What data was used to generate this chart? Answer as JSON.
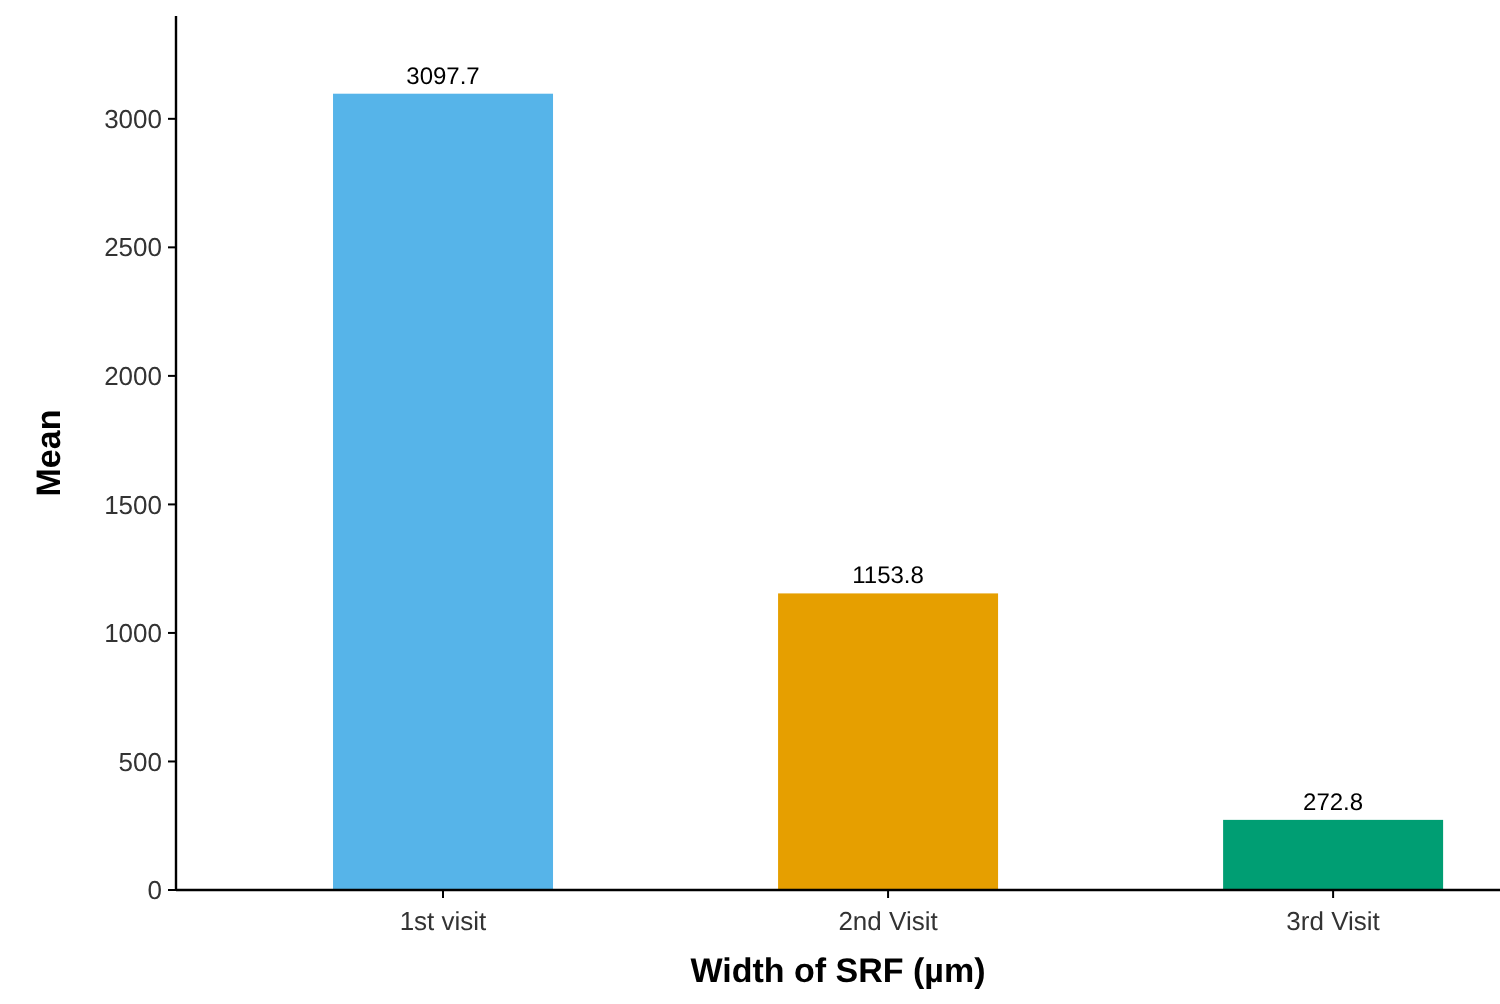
{
  "chart_data": {
    "type": "bar",
    "xlabel": "Width of SRF (µm)",
    "ylabel": "Mean",
    "categories": [
      "1st visit",
      "2nd Visit",
      "3rd Visit"
    ],
    "values": [
      3097.7,
      1153.8,
      272.8
    ],
    "colors": [
      "#56b4e9",
      "#e69f00",
      "#009e73"
    ],
    "ylim": [
      0,
      3400
    ],
    "yticks": [
      0,
      500,
      1000,
      1500,
      2000,
      2500,
      3000
    ],
    "data_labels": true,
    "grid": false
  }
}
